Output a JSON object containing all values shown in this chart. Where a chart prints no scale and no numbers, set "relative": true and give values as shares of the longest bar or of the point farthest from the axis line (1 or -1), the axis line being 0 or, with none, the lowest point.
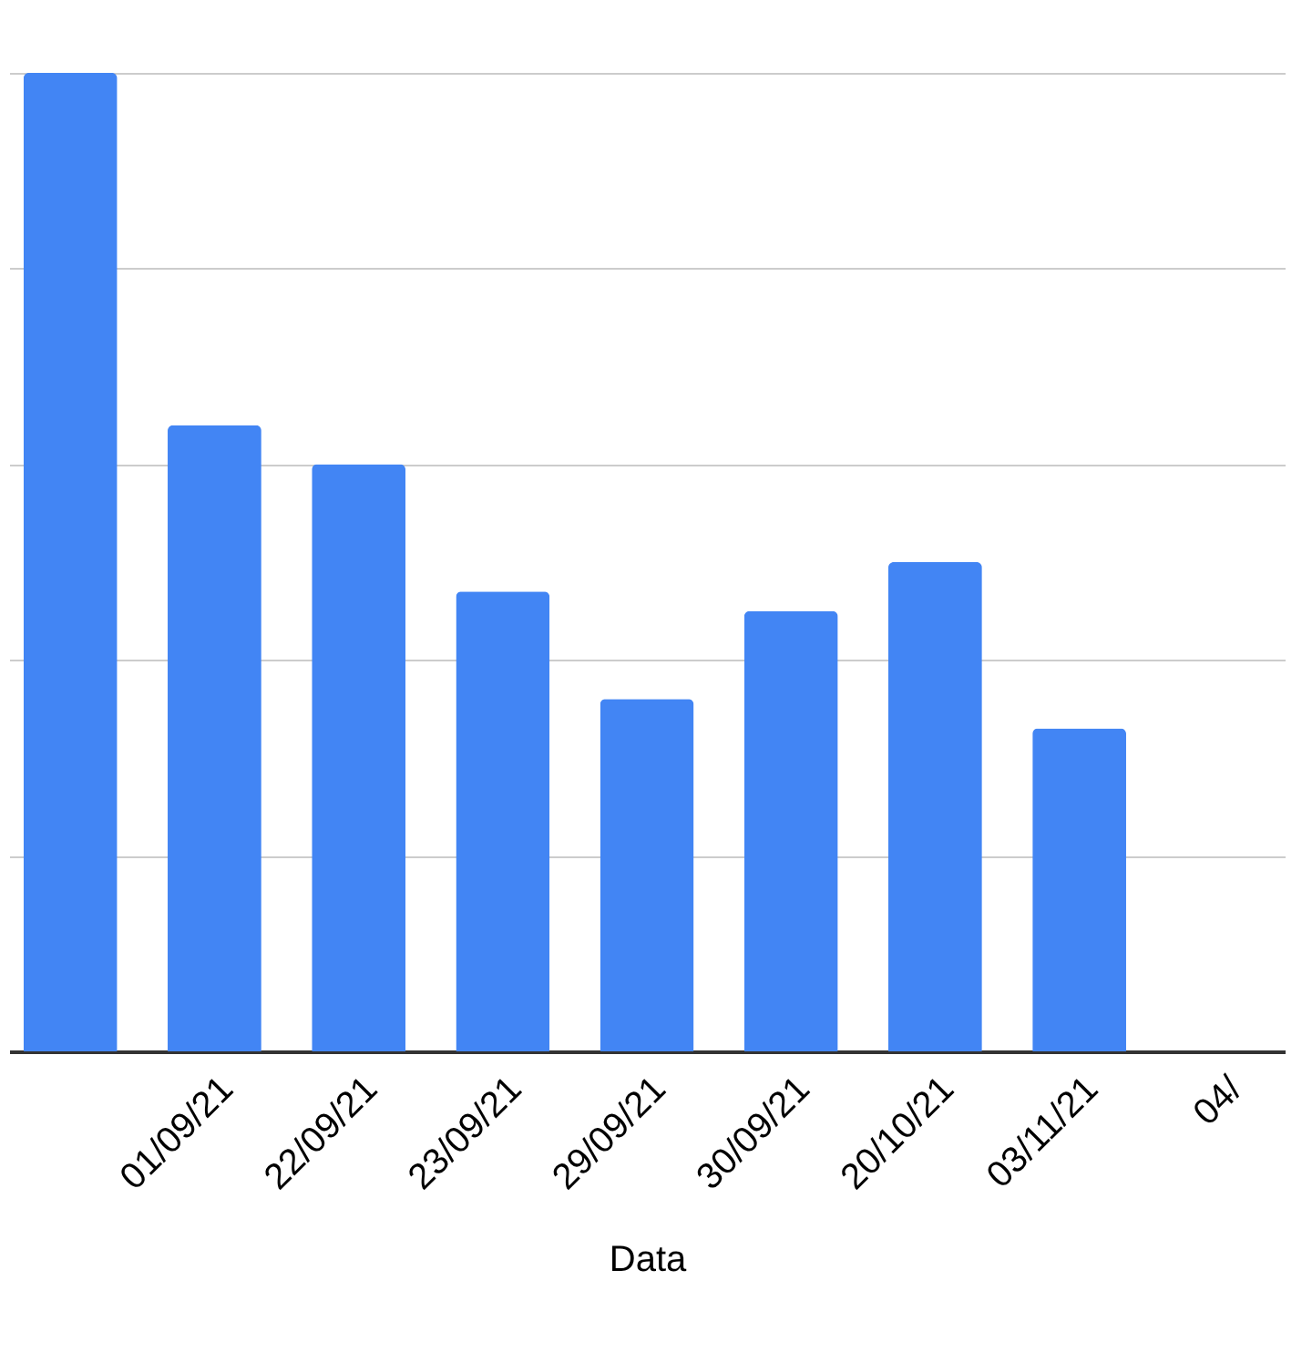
{
  "chart_data": {
    "type": "bar",
    "xlabel": "Data",
    "categories": [
      null,
      "01/09/21",
      "22/09/21",
      "23/09/21",
      "29/09/21",
      "30/09/21",
      "20/10/21",
      "03/11/21",
      "04/"
    ],
    "values": [
      1.0,
      0.64,
      0.6,
      0.47,
      0.36,
      0.45,
      0.5,
      0.33,
      null
    ],
    "color": "#4285f4",
    "relative": true,
    "grid": "y"
  }
}
